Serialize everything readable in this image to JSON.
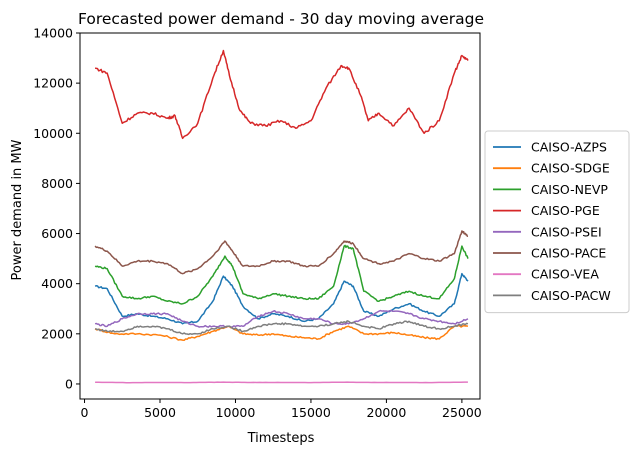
{
  "chart_data": {
    "type": "line",
    "title": "Forecasted power demand - 30 day moving average",
    "xlabel": "Timesteps",
    "ylabel": "Power demand in MW",
    "xlim": [
      -300,
      26200
    ],
    "ylim": [
      -600,
      14000
    ],
    "xticks": [
      0,
      5000,
      10000,
      15000,
      20000,
      25000
    ],
    "yticks": [
      0,
      2000,
      4000,
      6000,
      8000,
      10000,
      12000,
      14000
    ],
    "xtick_labels": [
      "0",
      "5000",
      "10000",
      "15000",
      "20000",
      "25000"
    ],
    "ytick_labels": [
      "0",
      "2000",
      "4000",
      "6000",
      "8000",
      "10000",
      "12000",
      "14000"
    ],
    "grid": false,
    "legend_position": "center-right-outside",
    "series": [
      {
        "name": "CAISO-AZPS",
        "color": "#1f77b4",
        "x": [
          700,
          1500,
          2500,
          3500,
          4500,
          5500,
          6500,
          7500,
          8500,
          9200,
          9800,
          10500,
          11500,
          12500,
          13500,
          14500,
          15500,
          16500,
          17200,
          17800,
          18500,
          19500,
          20500,
          21500,
          22500,
          23500,
          24500,
          25000,
          25400
        ],
        "y": [
          3900,
          3800,
          2700,
          2800,
          2700,
          2600,
          2400,
          2500,
          3300,
          4300,
          3900,
          3100,
          2600,
          2800,
          2700,
          2500,
          2600,
          3200,
          4100,
          3900,
          2900,
          2700,
          3000,
          3200,
          2900,
          2700,
          3200,
          4400,
          4100
        ]
      },
      {
        "name": "CAISO-SDGE",
        "color": "#ff7f0e",
        "x": [
          700,
          2000,
          3500,
          5000,
          6500,
          7500,
          8500,
          9500,
          10500,
          11500,
          12500,
          13500,
          14500,
          15500,
          16500,
          17500,
          18500,
          19500,
          20500,
          21500,
          22500,
          23500,
          24500,
          25400
        ],
        "y": [
          2200,
          2000,
          2000,
          1950,
          1750,
          1900,
          2100,
          2300,
          2000,
          1950,
          2000,
          1900,
          1850,
          1800,
          2100,
          2300,
          2000,
          2000,
          2050,
          1950,
          1850,
          1800,
          2300,
          2300
        ]
      },
      {
        "name": "CAISO-NEVP",
        "color": "#2ca02c",
        "x": [
          700,
          1500,
          2500,
          3500,
          4500,
          5500,
          6500,
          7500,
          8500,
          9300,
          9800,
          10500,
          11500,
          12500,
          13500,
          14500,
          15500,
          16500,
          17200,
          17800,
          18500,
          19500,
          20500,
          21500,
          22500,
          23500,
          24500,
          25000,
          25400
        ],
        "y": [
          4700,
          4600,
          3500,
          3400,
          3500,
          3300,
          3200,
          3500,
          4300,
          5100,
          4700,
          3600,
          3400,
          3600,
          3500,
          3400,
          3400,
          3900,
          5500,
          5400,
          3700,
          3300,
          3500,
          3700,
          3500,
          3400,
          4200,
          5500,
          5000
        ]
      },
      {
        "name": "CAISO-PGE",
        "color": "#d62728",
        "x": [
          700,
          1500,
          2500,
          3500,
          4500,
          5500,
          6000,
          6500,
          7500,
          8500,
          9200,
          9600,
          10300,
          11000,
          12000,
          13000,
          14000,
          15000,
          16000,
          17000,
          17500,
          18300,
          18800,
          19500,
          20500,
          21500,
          22500,
          23500,
          24500,
          25000,
          25400
        ],
        "y": [
          12600,
          12400,
          10400,
          10800,
          10800,
          10600,
          10700,
          9800,
          10400,
          12200,
          13300,
          12300,
          10900,
          10400,
          10300,
          10500,
          10200,
          10500,
          11800,
          12700,
          12600,
          11500,
          10500,
          10800,
          10300,
          11000,
          10000,
          10500,
          12400,
          13100,
          12900
        ]
      },
      {
        "name": "CAISO-PSEI",
        "color": "#9467bd",
        "x": [
          700,
          1500,
          2500,
          3500,
          4500,
          5500,
          6500,
          7500,
          8500,
          9500,
          10500,
          11500,
          12500,
          13500,
          14500,
          15500,
          16500,
          17500,
          18500,
          19500,
          20500,
          21500,
          22500,
          23500,
          24500,
          25400
        ],
        "y": [
          2400,
          2300,
          2600,
          2800,
          2800,
          2800,
          2500,
          2300,
          2300,
          2300,
          2300,
          2700,
          2900,
          2800,
          2600,
          2600,
          2400,
          2400,
          2600,
          2900,
          2900,
          2800,
          2600,
          2500,
          2400,
          2600
        ]
      },
      {
        "name": "CAISO-PACE",
        "color": "#8c564b",
        "x": [
          700,
          1500,
          2500,
          3500,
          4500,
          5500,
          6500,
          7500,
          8500,
          9300,
          9800,
          10500,
          11500,
          12500,
          13500,
          14500,
          15500,
          16500,
          17200,
          17800,
          18500,
          19500,
          20500,
          21500,
          22500,
          23500,
          24500,
          25000,
          25400
        ],
        "y": [
          5500,
          5300,
          4700,
          4900,
          4900,
          4800,
          4400,
          4600,
          5100,
          5700,
          5300,
          4700,
          4700,
          4900,
          4900,
          4700,
          4700,
          5200,
          5700,
          5600,
          5000,
          4800,
          4900,
          5200,
          5000,
          4900,
          5200,
          6100,
          5900
        ]
      },
      {
        "name": "CAISO-VEA",
        "color": "#e377c2",
        "x": [
          700,
          3000,
          5000,
          7000,
          9000,
          11000,
          13000,
          15000,
          17000,
          19000,
          21000,
          23000,
          25400
        ],
        "y": [
          70,
          50,
          60,
          55,
          70,
          60,
          60,
          55,
          70,
          60,
          60,
          55,
          75
        ]
      },
      {
        "name": "CAISO-PACW",
        "color": "#7f7f7f",
        "x": [
          700,
          1500,
          2500,
          3500,
          4500,
          5500,
          6500,
          7500,
          8500,
          9500,
          10500,
          11500,
          12500,
          13500,
          14500,
          15500,
          16500,
          17500,
          18500,
          19500,
          20500,
          21500,
          22500,
          23500,
          24500,
          25400
        ],
        "y": [
          2200,
          2100,
          2100,
          2300,
          2300,
          2200,
          2000,
          2000,
          2200,
          2300,
          2100,
          2300,
          2400,
          2400,
          2300,
          2300,
          2400,
          2500,
          2300,
          2200,
          2400,
          2500,
          2300,
          2200,
          2300,
          2400
        ]
      }
    ]
  }
}
